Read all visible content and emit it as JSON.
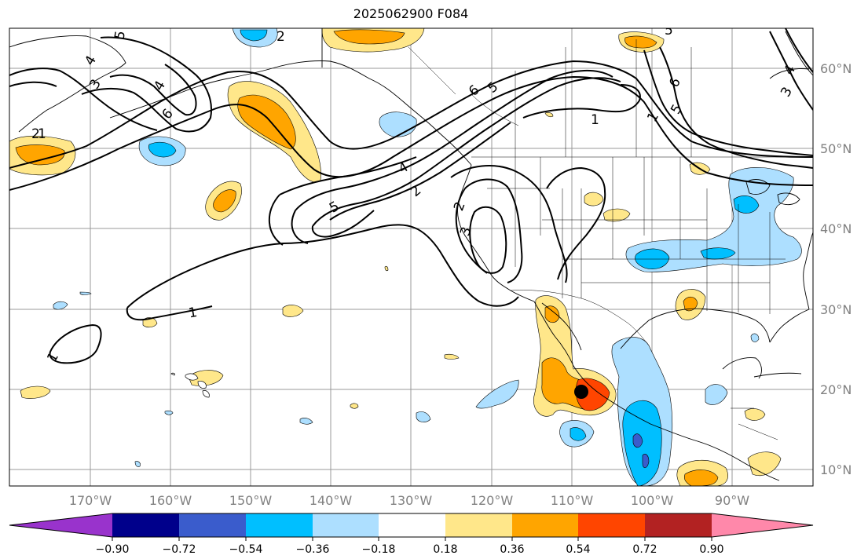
{
  "title": "2025062900 F084",
  "palette": {
    "neg_090": "#9933cc",
    "neg_072": "#00008b",
    "neg_054": "#3a5ccc",
    "neg_036": "#00bfff",
    "neg_018": "#addfff",
    "zero": "#ffffff",
    "pos_018": "#ffe78a",
    "pos_036": "#ffa500",
    "pos_054": "#ff4500",
    "pos_072": "#b22222",
    "pos_090": "#ff88aa",
    "contour": "#000000",
    "grid": "#999999",
    "coast": "#000000"
  },
  "lon_labels": [
    "170°W",
    "160°W",
    "150°W",
    "140°W",
    "130°W",
    "120°W",
    "110°W",
    "100°W",
    "90°W"
  ],
  "lat_labels": [
    "60°N",
    "50°N",
    "40°N",
    "30°N",
    "20°N",
    "10°N"
  ],
  "colorbar_labels": [
    "−0.90",
    "−0.72",
    "−0.54",
    "−0.36",
    "−0.18",
    "0.18",
    "0.36",
    "0.54",
    "0.72",
    "0.90"
  ],
  "contour_labels": [
    "1",
    "2",
    "4",
    "5",
    "6",
    "5",
    "2",
    "4",
    "6",
    "3",
    "4",
    "2",
    "5",
    "1",
    "1",
    "2",
    "3",
    "1",
    "6",
    "5",
    "1",
    "3",
    "4",
    "5"
  ],
  "marker": "storm-center"
}
